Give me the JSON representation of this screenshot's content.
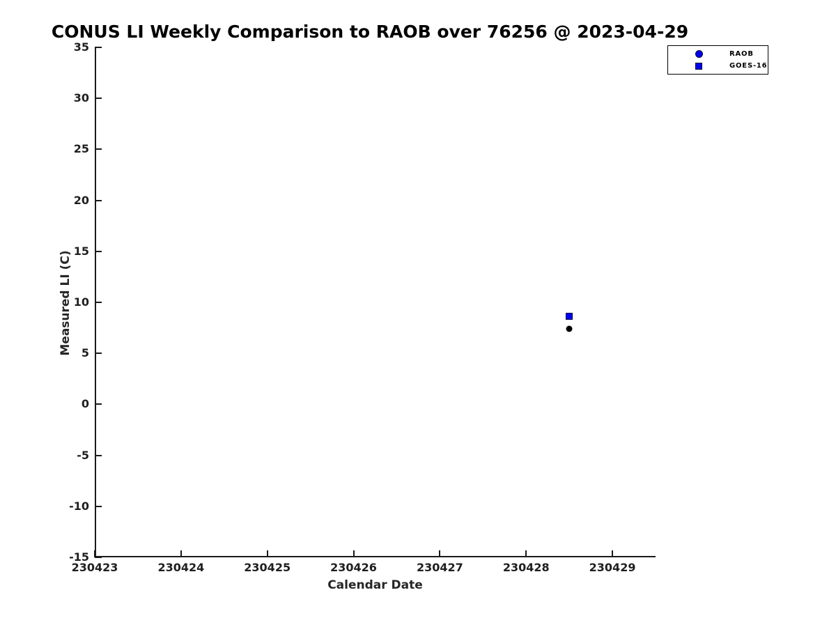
{
  "chart_data": {
    "type": "scatter",
    "title": "CONUS LI Weekly Comparison to RAOB over 76256 @ 2023-04-29",
    "xlabel": "Calendar Date",
    "ylabel": "Measured LI (C)",
    "xlim": [
      230423,
      230429.5
    ],
    "ylim": [
      -15,
      35
    ],
    "x_ticks": [
      230423,
      230424,
      230425,
      230426,
      230427,
      230428,
      230429
    ],
    "y_ticks": [
      35,
      30,
      25,
      20,
      15,
      10,
      5,
      0,
      -5,
      -10,
      -15
    ],
    "grid": false,
    "legend": {
      "position": "top-right",
      "entries": [
        {
          "label": "RAOB",
          "marker": "circle",
          "marker_color": "#0000ee",
          "edge_color": "#000033"
        },
        {
          "label": "GOES-16",
          "marker": "square",
          "marker_color": "#0000ee",
          "edge_color": "#000033"
        }
      ]
    },
    "series": [
      {
        "name": "RAOB",
        "marker": "circle",
        "rendered_color": "#000000",
        "points": [
          {
            "x": 230428.5,
            "y": 7.4
          }
        ]
      },
      {
        "name": "GOES-16",
        "marker": "square",
        "rendered_color": "#0000ee",
        "points": [
          {
            "x": 230428.5,
            "y": 8.6
          }
        ]
      }
    ]
  },
  "colors": {
    "background": "#ffffff",
    "axis": "#1a1a1a",
    "tick_label": "#1f1f1f",
    "title": "#000000",
    "marker_blue": "#0000ee",
    "marker_black": "#000000"
  }
}
